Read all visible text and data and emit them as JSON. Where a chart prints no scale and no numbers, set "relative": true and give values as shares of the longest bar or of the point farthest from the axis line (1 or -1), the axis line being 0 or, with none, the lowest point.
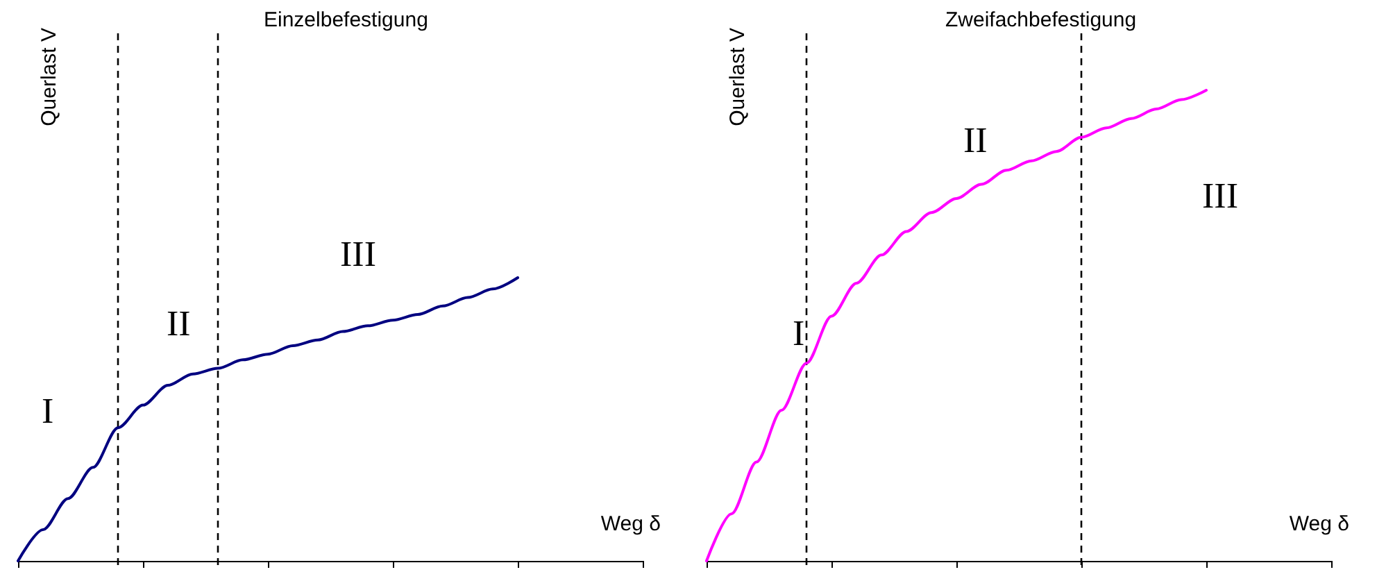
{
  "chart_data": [
    {
      "type": "line",
      "title": "Einzelbefestigung",
      "xlabel": "Weg δ",
      "ylabel": "Querlast V",
      "relative": true,
      "marker": "none",
      "line_style": "solid",
      "categories": [
        null,
        null,
        null,
        null,
        null,
        null,
        null,
        null,
        null,
        null,
        null,
        null,
        null,
        null,
        null,
        null,
        null,
        null,
        null,
        null,
        null,
        null,
        null,
        null,
        null,
        null
      ],
      "series": [
        {
          "color": "#000080",
          "values": [
            0,
            0.11,
            0.22,
            0.33,
            0.47,
            0.55,
            0.62,
            0.66,
            0.68,
            0.71,
            0.73,
            0.76,
            0.78,
            0.81,
            0.83,
            0.85,
            0.87,
            0.9,
            0.93,
            0.96,
            1,
            null,
            null,
            null,
            null,
            null
          ]
        }
      ],
      "annotations": [
        "I",
        "II",
        "III"
      ]
    },
    {
      "type": "line",
      "title": "Zweifachbefestigung",
      "xlabel": "Weg δ",
      "ylabel": "Querlast V",
      "relative": true,
      "marker": "none",
      "line_style": "solid",
      "categories": [
        null,
        null,
        null,
        null,
        null,
        null,
        null,
        null,
        null,
        null,
        null,
        null,
        null,
        null,
        null,
        null,
        null,
        null,
        null,
        null,
        null,
        null,
        null,
        null,
        null,
        null
      ],
      "series": [
        {
          "color": "#ff00ff",
          "values": [
            0,
            0.1,
            0.21,
            0.32,
            0.42,
            0.52,
            0.59,
            0.65,
            0.7,
            0.74,
            0.77,
            0.8,
            0.83,
            0.85,
            0.87,
            0.9,
            0.92,
            0.94,
            0.96,
            0.98,
            1,
            null,
            null,
            null,
            null,
            null
          ]
        }
      ],
      "annotations": [
        "I",
        "II",
        "III"
      ]
    }
  ]
}
